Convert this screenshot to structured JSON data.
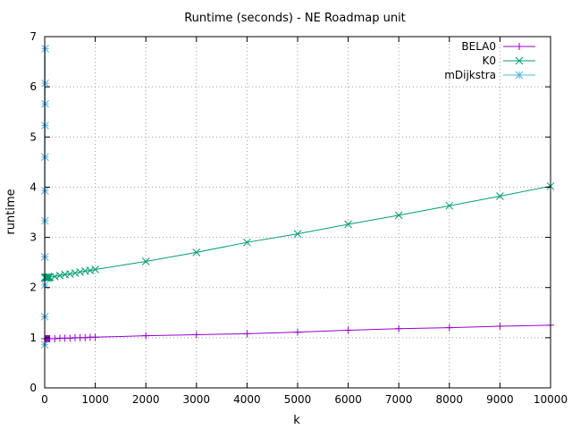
{
  "chart_data": {
    "type": "line",
    "title": "Runtime (seconds) - NE Roadmap unit",
    "xlabel": "k",
    "ylabel": "runtime",
    "xlim": [
      0,
      10000
    ],
    "ylim": [
      0,
      7
    ],
    "xticks": [
      0,
      1000,
      2000,
      3000,
      4000,
      5000,
      6000,
      7000,
      8000,
      9000,
      10000
    ],
    "yticks": [
      0,
      1,
      2,
      3,
      4,
      5,
      6,
      7
    ],
    "grid": true,
    "legend_position": "top-right",
    "series": [
      {
        "name": "BELA0",
        "color": "#9400d3",
        "marker": "plus",
        "x": [
          1,
          10,
          20,
          30,
          40,
          50,
          60,
          70,
          80,
          90,
          100,
          200,
          300,
          400,
          500,
          600,
          700,
          800,
          900,
          1000,
          2000,
          3000,
          4000,
          5000,
          6000,
          7000,
          8000,
          9000,
          10000
        ],
        "y": [
          0.98,
          0.98,
          0.98,
          0.98,
          0.98,
          0.98,
          0.98,
          0.98,
          0.98,
          0.98,
          0.98,
          0.98,
          0.99,
          0.99,
          0.99,
          1.0,
          1.0,
          1.0,
          1.01,
          1.01,
          1.04,
          1.06,
          1.08,
          1.11,
          1.15,
          1.18,
          1.2,
          1.23,
          1.25
        ]
      },
      {
        "name": "K0",
        "color": "#009e73",
        "marker": "cross",
        "x": [
          1,
          10,
          20,
          30,
          40,
          50,
          60,
          70,
          80,
          90,
          100,
          200,
          300,
          400,
          500,
          600,
          700,
          800,
          900,
          1000,
          2000,
          3000,
          4000,
          5000,
          6000,
          7000,
          8000,
          9000,
          10000
        ],
        "y": [
          2.2,
          2.2,
          2.2,
          2.2,
          2.2,
          2.2,
          2.2,
          2.2,
          2.2,
          2.2,
          2.21,
          2.22,
          2.24,
          2.26,
          2.27,
          2.29,
          2.31,
          2.33,
          2.34,
          2.36,
          2.52,
          2.7,
          2.9,
          3.07,
          3.26,
          3.44,
          3.63,
          3.82,
          4.02
        ]
      },
      {
        "name": "mDijkstra",
        "color": "#56b4e9",
        "marker": "star",
        "x": [
          1,
          2,
          3,
          4,
          5,
          6,
          7,
          8,
          9,
          10,
          11
        ],
        "y": [
          0.86,
          1.42,
          2.05,
          2.61,
          3.33,
          3.93,
          4.6,
          5.23,
          5.66,
          6.07,
          6.76
        ]
      }
    ]
  }
}
